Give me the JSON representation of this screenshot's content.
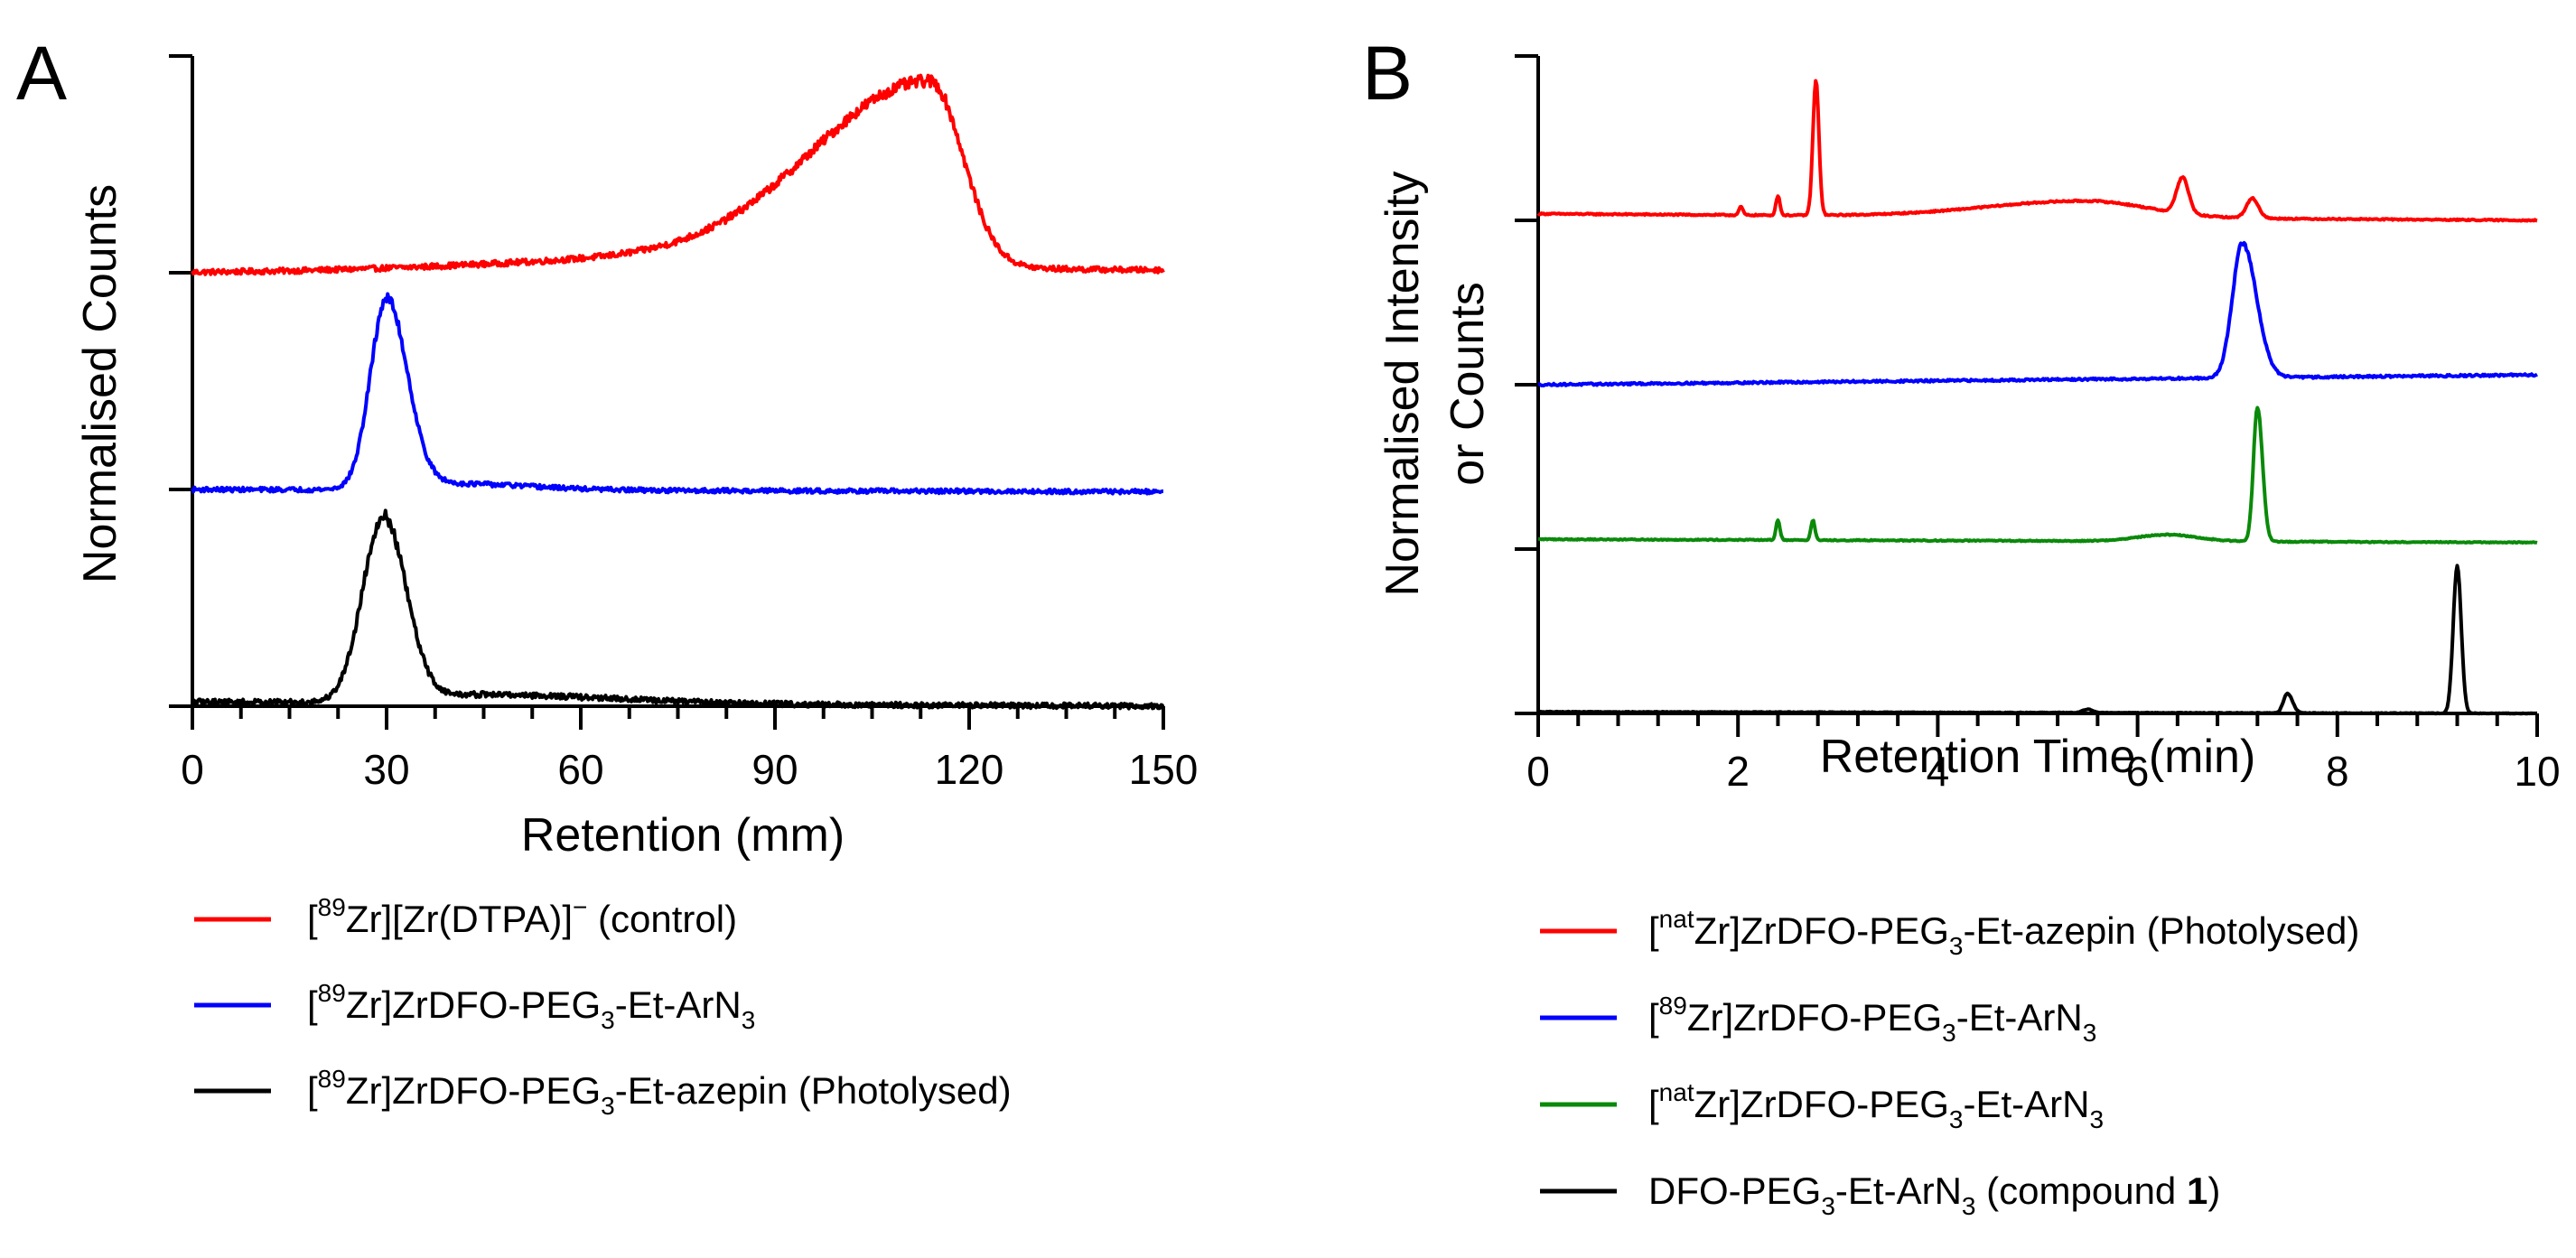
{
  "chart_data": [
    {
      "panel": "A",
      "type": "line",
      "xlabel": "Retention (mm)",
      "ylabel": "Normalised Counts",
      "xlim": [
        0,
        150
      ],
      "x_ticks": [
        0,
        30,
        60,
        90,
        120,
        150
      ],
      "x_tick_labels": [
        "0",
        "30",
        "60",
        "90",
        "120",
        "150"
      ],
      "stacked_offsets": true,
      "series": [
        {
          "name": "[89Zr][Zr(DTPA)]− (control)",
          "legend_parts": [
            [
              "",
              "["
            ],
            [
              "sup",
              "89"
            ],
            [
              "",
              "Zr][Zr(DTPA)]"
            ],
            [
              "sup",
              "−"
            ],
            [
              "",
              " (control)"
            ]
          ],
          "color": "#ff0000",
          "baseline": 0,
          "baseline_rel": 0,
          "tail": 0.01,
          "noise": 0.012,
          "peaks": [
            {
              "x": 114,
              "h": 0.85,
              "wl": 18,
              "wr": 5
            },
            {
              "x": 75,
              "h": 0.06,
              "wl": 30,
              "wr": 30
            }
          ]
        },
        {
          "name": "[89Zr]ZrDFO-PEG3-Et-ArN3",
          "legend_parts": [
            [
              "",
              "["
            ],
            [
              "sup",
              "89"
            ],
            [
              "",
              "Zr]ZrDFO-PEG"
            ],
            [
              "sub",
              "3"
            ],
            [
              "",
              "-Et-ArN"
            ],
            [
              "sub",
              "3"
            ]
          ],
          "color": "#0000ff",
          "baseline": 1,
          "baseline_rel": 0,
          "tail": -0.01,
          "noise": 0.01,
          "peaks": [
            {
              "x": 30,
              "h": 0.87,
              "wl": 2.5,
              "wr": 3.2
            },
            {
              "x": 40,
              "h": 0.03,
              "wl": 8,
              "wr": 12
            }
          ]
        },
        {
          "name": "[89Zr]ZrDFO-PEG3-Et-azepin (Photolysed)",
          "legend_parts": [
            [
              "",
              "["
            ],
            [
              "sup",
              "89"
            ],
            [
              "",
              "Zr]ZrDFO-PEG"
            ],
            [
              "sub",
              "3"
            ],
            [
              "",
              "-Et-azepin (Photolysed)"
            ]
          ],
          "color": "#000000",
          "baseline": 2,
          "baseline_rel": 0.02,
          "tail": -0.02,
          "noise": 0.012,
          "peaks": [
            {
              "x": 29.5,
              "h": 0.85,
              "wl": 3.2,
              "wr": 3.5
            },
            {
              "x": 45,
              "h": 0.04,
              "wl": 10,
              "wr": 20
            }
          ]
        }
      ]
    },
    {
      "panel": "B",
      "type": "line",
      "xlabel": "Retention Time (min)",
      "ylabel": "Normalised Intensity or Counts",
      "ylabel_lines": [
        "Normalised Intensity",
        "or Counts"
      ],
      "xlim": [
        0,
        10
      ],
      "x_ticks": [
        0,
        2,
        4,
        6,
        8,
        10
      ],
      "x_tick_labels": [
        "0",
        "2",
        "4",
        "6",
        "8",
        "10"
      ],
      "stacked_offsets": true,
      "series": [
        {
          "name": "[natZr]ZrDFO-PEG3-Et-azepin (Photolysed)",
          "legend_parts": [
            [
              "",
              "["
            ],
            [
              "sup",
              "nat"
            ],
            [
              "",
              "Zr]ZrDFO-PEG"
            ],
            [
              "sub",
              "3"
            ],
            [
              "",
              "-Et-azepin (Photolysed)"
            ]
          ],
          "color": "#ff0000",
          "baseline": 0,
          "baseline_rel": 0.04,
          "tail": -0.04,
          "noise": 0.004,
          "peaks": [
            {
              "x": 2.78,
              "h": 0.82,
              "wl": 0.03,
              "wr": 0.03
            },
            {
              "x": 2.4,
              "h": 0.12,
              "wl": 0.02,
              "wr": 0.02
            },
            {
              "x": 2.03,
              "h": 0.05,
              "wl": 0.02,
              "wr": 0.02
            },
            {
              "x": 6.45,
              "h": 0.22,
              "wl": 0.06,
              "wr": 0.06
            },
            {
              "x": 7.15,
              "h": 0.12,
              "wl": 0.06,
              "wr": 0.06
            },
            {
              "x": 5.5,
              "h": 0.1,
              "wl": 1.0,
              "wr": 0.6
            }
          ]
        },
        {
          "name": "[89Zr]ZrDFO-PEG3-Et-ArN3",
          "legend_parts": [
            [
              "",
              "["
            ],
            [
              "sup",
              "89"
            ],
            [
              "",
              "Zr]ZrDFO-PEG"
            ],
            [
              "sub",
              "3"
            ],
            [
              "",
              "-Et-ArN"
            ],
            [
              "sub",
              "3"
            ]
          ],
          "color": "#0000ff",
          "baseline": 1,
          "baseline_rel": 0,
          "tail": 0.06,
          "noise": 0.006,
          "peaks": [
            {
              "x": 7.05,
              "h": 0.82,
              "wl": 0.1,
              "wr": 0.14
            }
          ]
        },
        {
          "name": "[natZr]ZrDFO-PEG3-Et-ArN3",
          "legend_parts": [
            [
              "",
              "["
            ],
            [
              "sup",
              "nat"
            ],
            [
              "",
              "Zr]ZrDFO-PEG"
            ],
            [
              "sub",
              "3"
            ],
            [
              "",
              "-Et-ArN"
            ],
            [
              "sub",
              "3"
            ]
          ],
          "color": "#0a8a0a",
          "baseline": 2,
          "baseline_rel": 0.06,
          "tail": -0.02,
          "noise": 0.003,
          "peaks": [
            {
              "x": 7.2,
              "h": 0.82,
              "wl": 0.04,
              "wr": 0.05
            },
            {
              "x": 2.4,
              "h": 0.12,
              "wl": 0.02,
              "wr": 0.02
            },
            {
              "x": 2.75,
              "h": 0.12,
              "wl": 0.02,
              "wr": 0.02
            },
            {
              "x": 6.3,
              "h": 0.04,
              "wl": 0.3,
              "wr": 0.3
            }
          ]
        },
        {
          "name": "DFO-PEG3-Et-ArN3 (compound 1)",
          "legend_parts": [
            [
              "",
              "DFO-PEG"
            ],
            [
              "sub",
              "3"
            ],
            [
              "",
              "-Et-ArN"
            ],
            [
              "sub",
              "3"
            ],
            [
              "",
              " (compound "
            ],
            [
              "bold",
              "1"
            ],
            [
              "",
              ")"
            ]
          ],
          "color": "#000000",
          "baseline": 3,
          "baseline_rel": 0.01,
          "tail": -0.01,
          "noise": 0.002,
          "peaks": [
            {
              "x": 9.2,
              "h": 0.9,
              "wl": 0.04,
              "wr": 0.04
            },
            {
              "x": 7.5,
              "h": 0.12,
              "wl": 0.04,
              "wr": 0.05
            },
            {
              "x": 5.5,
              "h": 0.02,
              "wl": 0.05,
              "wr": 0.05
            }
          ]
        }
      ]
    }
  ],
  "panels": {
    "a": {
      "letter": "A"
    },
    "b": {
      "letter": "B"
    }
  }
}
